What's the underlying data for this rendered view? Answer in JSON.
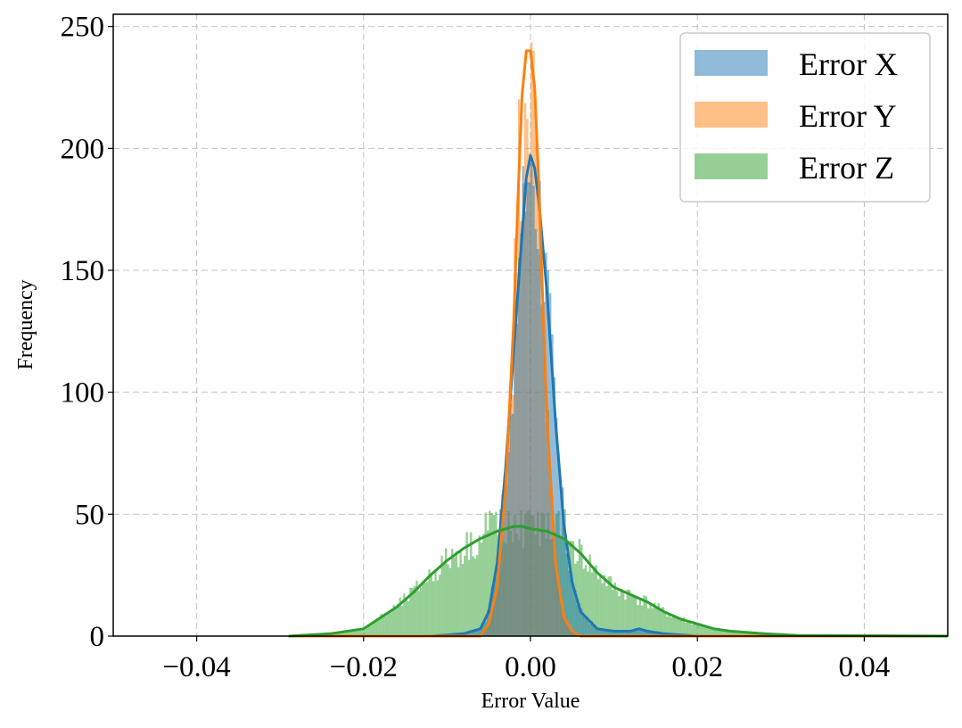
{
  "chart_data": {
    "type": "histogram-kde",
    "title": "",
    "xlabel": "Error Value",
    "ylabel": "Frequency",
    "xlim": [
      -0.05,
      0.05
    ],
    "ylim": [
      0,
      255
    ],
    "xticks": [
      -0.04,
      -0.02,
      0.0,
      0.02,
      0.04
    ],
    "xtick_labels": [
      "−0.04",
      "−0.02",
      "0.00",
      "0.02",
      "0.04"
    ],
    "yticks": [
      0,
      50,
      100,
      150,
      200,
      250
    ],
    "ytick_labels": [
      "0",
      "50",
      "100",
      "150",
      "200",
      "250"
    ],
    "grid": true,
    "legend_position": "upper-right",
    "series": [
      {
        "name": "Error X",
        "color": "#1f77b4",
        "hist_color": "#8fbbd9",
        "kde_x": [
          -0.029,
          -0.012,
          -0.008,
          -0.006,
          -0.005,
          -0.004,
          -0.003,
          -0.002,
          -0.001,
          -0.0005,
          0.0,
          0.0005,
          0.001,
          0.002,
          0.003,
          0.004,
          0.005,
          0.006,
          0.008,
          0.01,
          0.012,
          0.013,
          0.014,
          0.016,
          0.02,
          0.03,
          0.05
        ],
        "kde_y": [
          0,
          0,
          1,
          3,
          10,
          30,
          68,
          118,
          165,
          188,
          197,
          192,
          178,
          140,
          88,
          46,
          22,
          10,
          3,
          2,
          2,
          3,
          2,
          1,
          0,
          0,
          0
        ],
        "hist_peak": 200
      },
      {
        "name": "Error Y",
        "color": "#ff7f0e",
        "hist_color": "#ffbf86",
        "kde_x": [
          -0.029,
          -0.006,
          -0.005,
          -0.004,
          -0.003,
          -0.002,
          -0.0015,
          -0.001,
          -0.0005,
          0.0,
          0.0005,
          0.001,
          0.0015,
          0.002,
          0.003,
          0.004,
          0.005,
          0.006,
          0.05
        ],
        "kde_y": [
          0,
          0,
          5,
          20,
          60,
          130,
          180,
          222,
          240,
          240,
          225,
          185,
          135,
          88,
          30,
          8,
          2,
          0,
          0
        ],
        "hist_peak": 245
      },
      {
        "name": "Error Z",
        "color": "#2ca02c",
        "hist_color": "#95d195",
        "kde_x": [
          -0.029,
          -0.024,
          -0.02,
          -0.016,
          -0.014,
          -0.012,
          -0.01,
          -0.008,
          -0.006,
          -0.004,
          -0.002,
          -0.001,
          0.0,
          0.002,
          0.004,
          0.006,
          0.008,
          0.01,
          0.012,
          0.014,
          0.016,
          0.018,
          0.02,
          0.022,
          0.024,
          0.028,
          0.032,
          0.05
        ],
        "kde_y": [
          0,
          1,
          3,
          12,
          18,
          25,
          31,
          36,
          40,
          43,
          45,
          45,
          44,
          43,
          40,
          34,
          26,
          20,
          17,
          14,
          10,
          7,
          5,
          3,
          2,
          1,
          0.3,
          0
        ],
        "hist_peak": 52
      }
    ]
  }
}
